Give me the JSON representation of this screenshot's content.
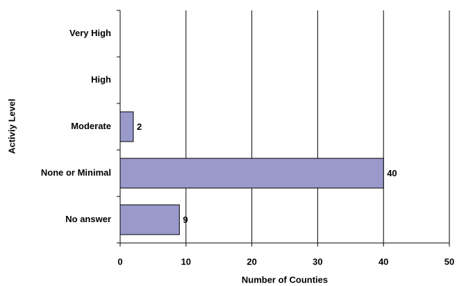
{
  "chart_data": {
    "type": "bar",
    "orientation": "horizontal",
    "x_label": "Number of Counties",
    "y_label": "Activiy Level",
    "categories": [
      "Very High",
      "High",
      "Moderate",
      "None or Minimal",
      "No answer"
    ],
    "values": [
      null,
      null,
      2,
      40,
      9
    ],
    "color": "#9999cc",
    "xlim": [
      0,
      50
    ],
    "xticks": [
      0,
      10,
      20,
      30,
      40,
      50
    ],
    "grid": true
  }
}
